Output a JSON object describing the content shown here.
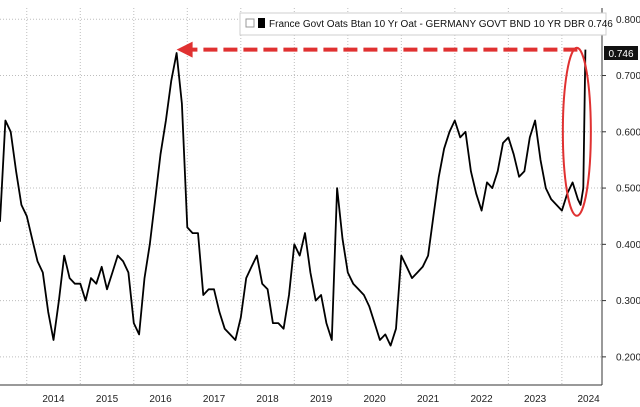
{
  "chart_data": {
    "type": "line",
    "title": "",
    "xlabel": "",
    "ylabel": "",
    "ylim": [
      0.15,
      0.82
    ],
    "grid": true,
    "legend_position": "top-right",
    "y_ticks": [
      "0.200",
      "0.300",
      "0.400",
      "0.500",
      "0.600",
      "0.700",
      "0.800"
    ],
    "x_ticks": [
      "2014",
      "2015",
      "2016",
      "2017",
      "2018",
      "2019",
      "2020",
      "2021",
      "2022",
      "2023",
      "2024"
    ],
    "last_value_label": "0.746",
    "colors": {
      "line": "#000000",
      "annotation": "#e03131"
    },
    "series": [
      {
        "name": "France Govt Oats Btan 10 Yr Oat - GERMANY GOVT BND 10 YR DBR 0.746",
        "x": [
          2013.5,
          2013.6,
          2013.7,
          2013.8,
          2013.9,
          2014.0,
          2014.1,
          2014.2,
          2014.3,
          2014.4,
          2014.5,
          2014.6,
          2014.7,
          2014.8,
          2014.9,
          2015.0,
          2015.1,
          2015.2,
          2015.3,
          2015.4,
          2015.5,
          2015.6,
          2015.7,
          2015.8,
          2015.9,
          2016.0,
          2016.1,
          2016.2,
          2016.3,
          2016.4,
          2016.5,
          2016.6,
          2016.7,
          2016.8,
          2016.9,
          2017.0,
          2017.1,
          2017.2,
          2017.3,
          2017.4,
          2017.5,
          2017.6,
          2017.7,
          2017.8,
          2017.9,
          2018.0,
          2018.1,
          2018.2,
          2018.3,
          2018.4,
          2018.5,
          2018.6,
          2018.7,
          2018.8,
          2018.9,
          2019.0,
          2019.1,
          2019.2,
          2019.3,
          2019.4,
          2019.5,
          2019.6,
          2019.7,
          2019.8,
          2019.9,
          2020.0,
          2020.1,
          2020.2,
          2020.3,
          2020.4,
          2020.5,
          2020.6,
          2020.7,
          2020.8,
          2020.9,
          2021.0,
          2021.1,
          2021.2,
          2021.3,
          2021.4,
          2021.5,
          2021.6,
          2021.7,
          2021.8,
          2021.9,
          2022.0,
          2022.1,
          2022.2,
          2022.3,
          2022.4,
          2022.5,
          2022.6,
          2022.7,
          2022.8,
          2022.9,
          2023.0,
          2023.1,
          2023.2,
          2023.3,
          2023.4,
          2023.5,
          2023.6,
          2023.7,
          2023.8,
          2023.9,
          2024.0,
          2024.1,
          2024.2,
          2024.3,
          2024.35,
          2024.4,
          2024.44
        ],
        "values": [
          0.44,
          0.62,
          0.6,
          0.53,
          0.47,
          0.45,
          0.41,
          0.37,
          0.35,
          0.28,
          0.23,
          0.3,
          0.38,
          0.34,
          0.33,
          0.33,
          0.3,
          0.34,
          0.33,
          0.36,
          0.32,
          0.35,
          0.38,
          0.37,
          0.35,
          0.26,
          0.24,
          0.34,
          0.4,
          0.48,
          0.56,
          0.62,
          0.69,
          0.74,
          0.65,
          0.43,
          0.42,
          0.42,
          0.31,
          0.32,
          0.32,
          0.28,
          0.25,
          0.24,
          0.23,
          0.27,
          0.34,
          0.36,
          0.38,
          0.33,
          0.32,
          0.26,
          0.26,
          0.25,
          0.31,
          0.4,
          0.38,
          0.42,
          0.35,
          0.3,
          0.31,
          0.26,
          0.23,
          0.5,
          0.41,
          0.35,
          0.33,
          0.32,
          0.31,
          0.29,
          0.26,
          0.23,
          0.24,
          0.22,
          0.25,
          0.38,
          0.36,
          0.34,
          0.35,
          0.36,
          0.38,
          0.45,
          0.52,
          0.57,
          0.6,
          0.62,
          0.59,
          0.6,
          0.53,
          0.49,
          0.46,
          0.51,
          0.5,
          0.53,
          0.58,
          0.59,
          0.56,
          0.52,
          0.53,
          0.59,
          0.62,
          0.55,
          0.5,
          0.48,
          0.47,
          0.46,
          0.49,
          0.51,
          0.48,
          0.47,
          0.5,
          0.746
        ]
      }
    ]
  }
}
